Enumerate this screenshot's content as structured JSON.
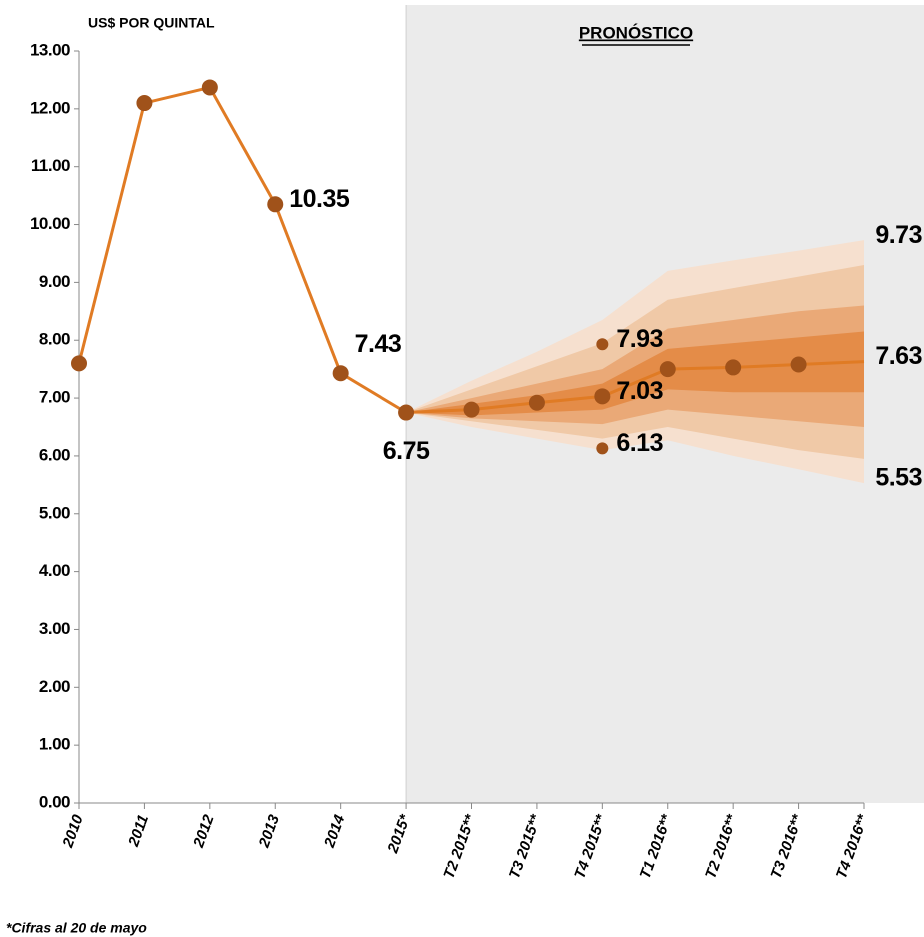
{
  "chart_data": {
    "type": "line",
    "y_axis_label": "US$ POR QUINTAL",
    "forecast_label": "PRONÓSTICO",
    "footnote": "*Cifras al 20 de mayo",
    "categories": [
      "2010",
      "2011",
      "2012",
      "2013",
      "2014",
      "2015*",
      "T2 2015**",
      "T3 2015**",
      "T4 2015**",
      "T1 2016**",
      "T2 2016**",
      "T3 2016**",
      "T4 2016**"
    ],
    "forecast_start": "2015*",
    "series": [
      {
        "color": "#e07b24",
        "marker_color": "#a0521a",
        "values": [
          7.6,
          12.1,
          12.37,
          10.35,
          7.43,
          6.75,
          6.8,
          6.92,
          7.03,
          7.5,
          7.53,
          7.58,
          7.63
        ],
        "value_labels": [
          null,
          null,
          null,
          "10.35",
          "7.43",
          "6.75",
          null,
          null,
          "7.03",
          null,
          null,
          null,
          "7.63"
        ]
      },
      {
        "color": "#a0521a",
        "values": [
          null,
          null,
          null,
          null,
          null,
          null,
          null,
          null,
          7.93,
          null,
          null,
          null,
          9.73
        ],
        "value_labels": [
          null,
          null,
          null,
          null,
          null,
          null,
          null,
          null,
          "7.93",
          null,
          null,
          null,
          "9.73"
        ]
      },
      {
        "color": "#a0521a",
        "values": [
          null,
          null,
          null,
          null,
          null,
          null,
          null,
          null,
          6.13,
          null,
          null,
          null,
          5.53
        ],
        "value_labels": [
          null,
          null,
          null,
          null,
          null,
          null,
          null,
          null,
          "6.13",
          null,
          null,
          null,
          "5.53"
        ]
      }
    ],
    "bands": [
      {
        "color": "#f6e0cf",
        "upper": [
          null,
          null,
          null,
          null,
          null,
          6.75,
          7.3,
          7.8,
          8.35,
          9.2,
          9.38,
          9.55,
          9.73
        ],
        "lower": [
          null,
          null,
          null,
          null,
          null,
          6.75,
          6.5,
          6.3,
          6.1,
          6.27,
          6.0,
          5.77,
          5.53
        ]
      },
      {
        "color": "#f0c9a7",
        "upper": [
          null,
          null,
          null,
          null,
          null,
          6.75,
          7.15,
          7.55,
          7.95,
          8.7,
          8.9,
          9.1,
          9.3
        ],
        "lower": [
          null,
          null,
          null,
          null,
          null,
          6.75,
          6.6,
          6.45,
          6.3,
          6.5,
          6.3,
          6.1,
          5.95
        ]
      },
      {
        "color": "#eaa977",
        "upper": [
          null,
          null,
          null,
          null,
          null,
          6.75,
          7.0,
          7.25,
          7.5,
          8.2,
          8.35,
          8.5,
          8.6
        ],
        "lower": [
          null,
          null,
          null,
          null,
          null,
          6.75,
          6.65,
          6.6,
          6.55,
          6.8,
          6.7,
          6.6,
          6.5
        ]
      },
      {
        "color": "#e48c48",
        "upper": [
          null,
          null,
          null,
          null,
          null,
          6.75,
          6.9,
          7.05,
          7.25,
          7.85,
          7.95,
          8.05,
          8.15
        ],
        "lower": [
          null,
          null,
          null,
          null,
          null,
          6.75,
          6.7,
          6.75,
          6.8,
          7.15,
          7.1,
          7.1,
          7.1
        ]
      }
    ],
    "ylim": [
      0,
      13
    ],
    "yticks": [
      {
        "value": 0,
        "label": "0.00"
      },
      {
        "value": 1,
        "label": "1.00"
      },
      {
        "value": 2,
        "label": "2.00"
      },
      {
        "value": 3,
        "label": "3.00"
      },
      {
        "value": 4,
        "label": "4.00"
      },
      {
        "value": 5,
        "label": "5.00"
      },
      {
        "value": 6,
        "label": "6.00"
      },
      {
        "value": 7,
        "label": "7.00"
      },
      {
        "value": 8,
        "label": "8.00"
      },
      {
        "value": 9,
        "label": "9.00"
      },
      {
        "value": 10,
        "label": "10.00"
      },
      {
        "value": 11,
        "label": "11.00"
      },
      {
        "value": 12,
        "label": "12.00"
      },
      {
        "value": 13,
        "label": "13.00"
      }
    ],
    "grid": false
  }
}
